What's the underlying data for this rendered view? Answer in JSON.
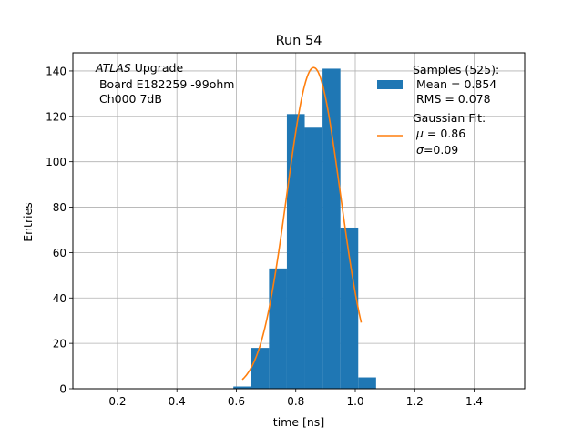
{
  "chart_data": {
    "type": "bar",
    "title": "Run 54",
    "xlabel": "time [ns]",
    "ylabel": "Entries",
    "xlim": [
      0.05,
      1.57
    ],
    "ylim": [
      0,
      148
    ],
    "xticks": [
      0.2,
      0.4,
      0.6,
      0.8,
      1.0,
      1.2,
      1.4
    ],
    "yticks": [
      0,
      20,
      40,
      60,
      80,
      100,
      120,
      140
    ],
    "grid": true,
    "bar_color": "#1f77b4",
    "fit_color": "#ff7f0e",
    "bins": [
      {
        "x0": 0.59,
        "x1": 0.65,
        "count": 1
      },
      {
        "x0": 0.65,
        "x1": 0.71,
        "count": 18
      },
      {
        "x0": 0.71,
        "x1": 0.77,
        "count": 53
      },
      {
        "x0": 0.77,
        "x1": 0.83,
        "count": 121
      },
      {
        "x0": 0.83,
        "x1": 0.89,
        "count": 115
      },
      {
        "x0": 0.89,
        "x1": 0.95,
        "count": 141
      },
      {
        "x0": 0.95,
        "x1": 1.01,
        "count": 71
      },
      {
        "x0": 1.01,
        "x1": 1.07,
        "count": 5
      }
    ],
    "fit": {
      "mu": 0.86,
      "sigma": 0.09,
      "amplitude": 141.5,
      "x_range": [
        0.62,
        1.02
      ]
    },
    "annotation": {
      "line1_italic": "ATLAS",
      "line1_rest": " Upgrade",
      "line2": " Board E182259 -99ohm",
      "line3": " Ch000 7dB"
    },
    "legend": {
      "placement": "top-right",
      "samples_label": "Samples (525):",
      "samples_mean": " Mean = 0.854",
      "samples_rms": " RMS = 0.078",
      "fit_label": "Gaussian Fit:",
      "fit_mu_symbol": "μ",
      "fit_mu_rest": " = 0.86",
      "fit_sigma_symbol": "σ",
      "fit_sigma_rest": "=0.09"
    }
  }
}
